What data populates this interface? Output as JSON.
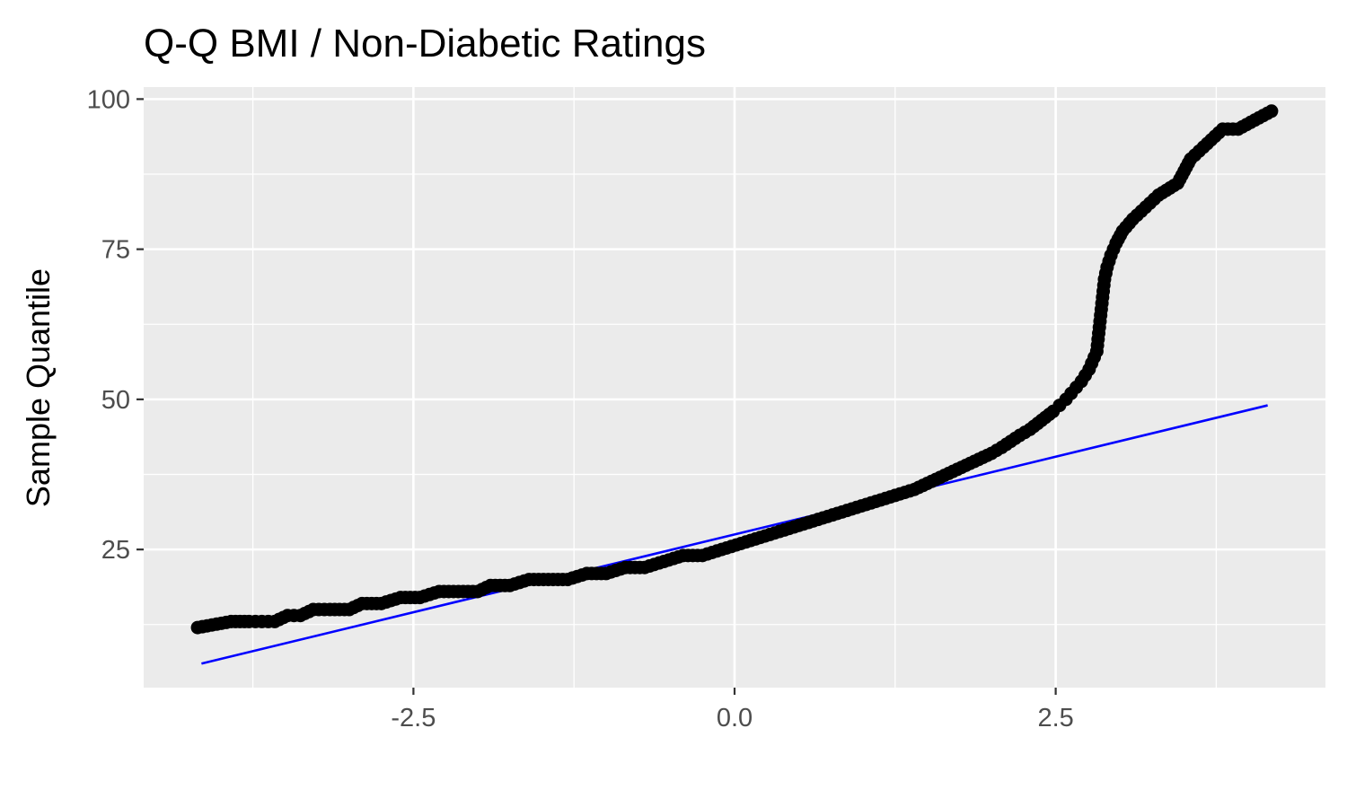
{
  "chart_data": {
    "type": "scatter",
    "title": "Q-Q BMI / Non-Diabetic Ratings",
    "xlabel": "",
    "ylabel": "Sample Quantile",
    "xlim": [
      -4.6,
      4.6
    ],
    "ylim": [
      2,
      102
    ],
    "x_ticks": [
      -2.5,
      0.0,
      2.5
    ],
    "x_tick_labels": [
      "-2.5",
      "0.0",
      "2.5"
    ],
    "y_ticks": [
      25,
      50,
      75,
      100
    ],
    "y_tick_labels": [
      "25",
      "50",
      "75",
      "100"
    ],
    "grid": true,
    "legend": "none",
    "colors": {
      "panel": "#ebebeb",
      "grid": "#ffffff",
      "points": "#000000",
      "line": "#0000ff",
      "ticks": "#4d4d4d"
    },
    "series": [
      {
        "type": "scatter",
        "points": [
          [
            -4.18,
            12
          ],
          [
            -3.92,
            13
          ],
          [
            -3.78,
            13
          ],
          [
            -3.68,
            13
          ],
          [
            -3.58,
            13
          ],
          [
            -3.48,
            14
          ],
          [
            -3.38,
            14
          ],
          [
            -3.28,
            15
          ],
          [
            -3.15,
            15
          ],
          [
            -3.0,
            15
          ],
          [
            -2.9,
            16
          ],
          [
            -2.75,
            16
          ],
          [
            -2.6,
            17
          ],
          [
            -2.45,
            17
          ],
          [
            -2.3,
            18
          ],
          [
            -2.15,
            18
          ],
          [
            -2.0,
            18
          ],
          [
            -1.9,
            19
          ],
          [
            -1.75,
            19
          ],
          [
            -1.6,
            20
          ],
          [
            -1.45,
            20
          ],
          [
            -1.3,
            20
          ],
          [
            -1.15,
            21
          ],
          [
            -1.0,
            21
          ],
          [
            -0.85,
            22
          ],
          [
            -0.7,
            22
          ],
          [
            -0.55,
            23
          ],
          [
            -0.4,
            24
          ],
          [
            -0.25,
            24
          ],
          [
            -0.1,
            25
          ],
          [
            0.05,
            26
          ],
          [
            0.2,
            27
          ],
          [
            0.35,
            28
          ],
          [
            0.5,
            29
          ],
          [
            0.65,
            30
          ],
          [
            0.8,
            31
          ],
          [
            0.95,
            32
          ],
          [
            1.1,
            33
          ],
          [
            1.25,
            34
          ],
          [
            1.4,
            35
          ],
          [
            1.5,
            36
          ],
          [
            1.6,
            37
          ],
          [
            1.7,
            38
          ],
          [
            1.8,
            39
          ],
          [
            1.9,
            40
          ],
          [
            2.0,
            41
          ],
          [
            2.08,
            42
          ],
          [
            2.15,
            43
          ],
          [
            2.22,
            44
          ],
          [
            2.3,
            45
          ],
          [
            2.36,
            46
          ],
          [
            2.42,
            47
          ],
          [
            2.48,
            48
          ],
          [
            2.53,
            49
          ],
          [
            2.58,
            50
          ],
          [
            2.62,
            51
          ],
          [
            2.66,
            52
          ],
          [
            2.7,
            53
          ],
          [
            2.73,
            54
          ],
          [
            2.76,
            55
          ],
          [
            2.78,
            56
          ],
          [
            2.8,
            57
          ],
          [
            2.82,
            58
          ],
          [
            2.83,
            60
          ],
          [
            2.84,
            62
          ],
          [
            2.85,
            64
          ],
          [
            2.86,
            66
          ],
          [
            2.87,
            68
          ],
          [
            2.88,
            70
          ],
          [
            2.9,
            72
          ],
          [
            2.93,
            74
          ],
          [
            2.97,
            76
          ],
          [
            3.02,
            78
          ],
          [
            3.1,
            80
          ],
          [
            3.2,
            82
          ],
          [
            3.3,
            84
          ],
          [
            3.45,
            86
          ],
          [
            3.5,
            88
          ],
          [
            3.55,
            90
          ],
          [
            3.65,
            92
          ],
          [
            3.8,
            95
          ],
          [
            3.92,
            95
          ],
          [
            4.18,
            98
          ]
        ]
      },
      {
        "type": "line",
        "x": [
          -4.15,
          4.15
        ],
        "y": [
          6,
          49
        ]
      }
    ]
  }
}
